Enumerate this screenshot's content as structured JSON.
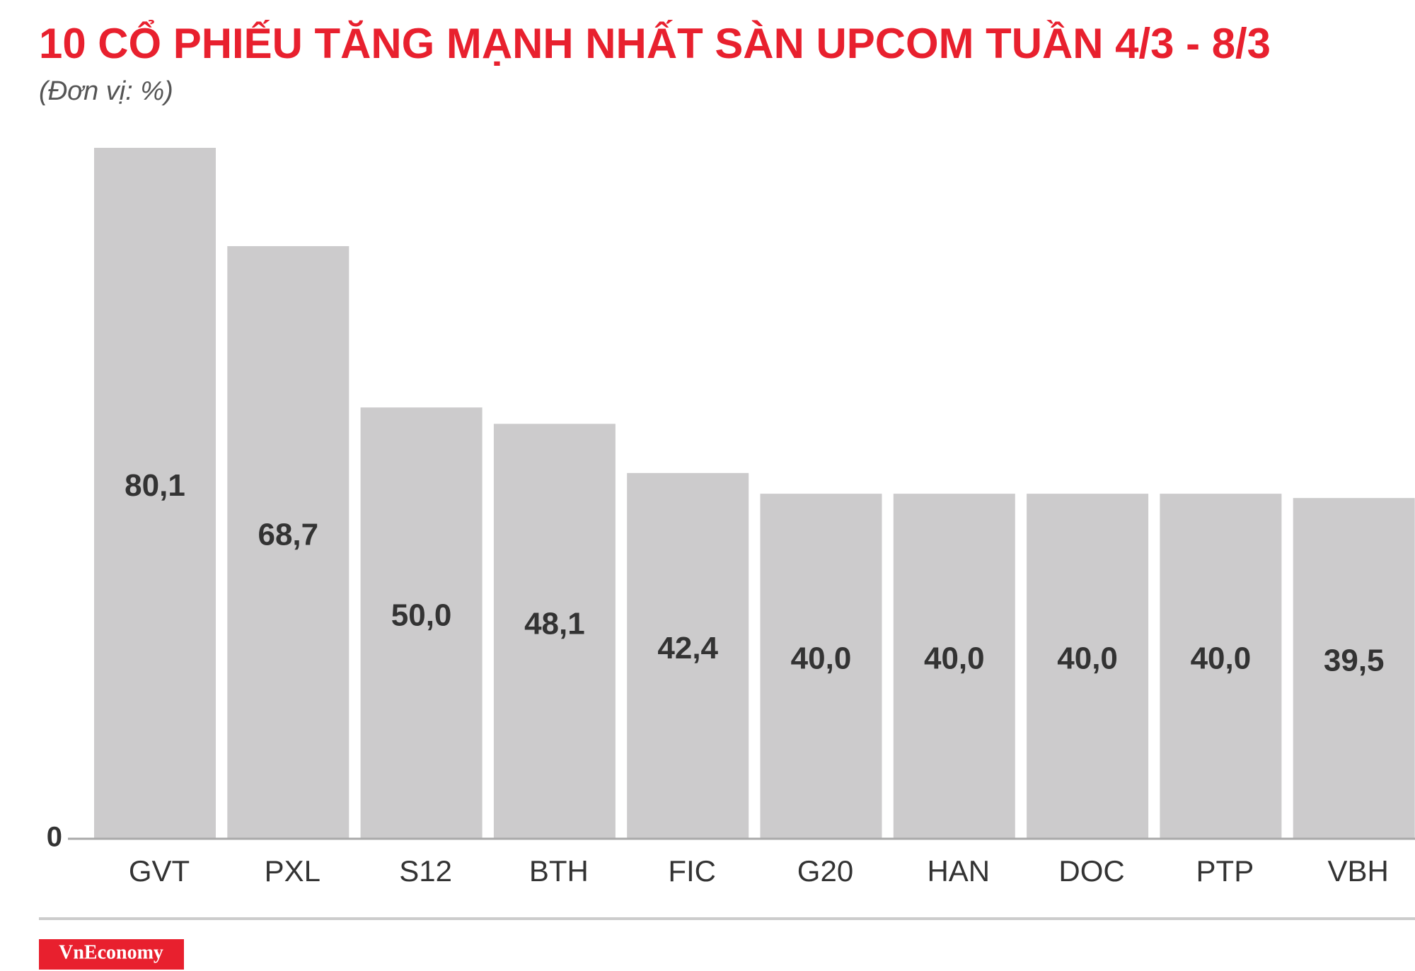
{
  "chart_data": {
    "type": "bar",
    "title": "10 CỔ PHIẾU TĂNG MẠNH NHẤT SÀN UPCOM TUẦN 4/3 - 8/3",
    "subtitle": "(Đơn vị: %)",
    "categories": [
      "GVT",
      "PXL",
      "S12",
      "BTH",
      "FIC",
      "G20",
      "HAN",
      "DOC",
      "PTP",
      "VBH"
    ],
    "values": [
      80.1,
      68.7,
      50.0,
      48.1,
      42.4,
      40.0,
      40.0,
      40.0,
      40.0,
      39.5
    ],
    "value_labels": [
      "80,1",
      "68,7",
      "50,0",
      "48,1",
      "42,4",
      "40,0",
      "40,0",
      "40,0",
      "40,0",
      "39,5"
    ],
    "color": "#cccbcc",
    "ylim": [
      0,
      80.1
    ],
    "yticks": [
      0
    ],
    "grid": false
  },
  "brand": "VnEconomy"
}
